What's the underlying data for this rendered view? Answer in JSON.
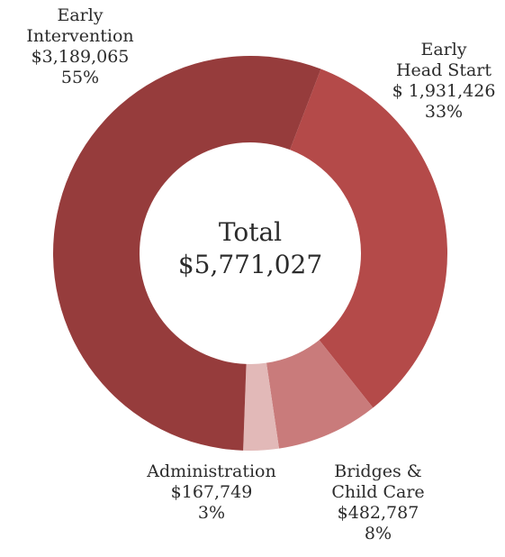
{
  "chart_data": {
    "type": "pie",
    "center": {
      "title": "Total",
      "value": "$5,771,027"
    },
    "slices": [
      {
        "label_lines": [
          "Early",
          "Intervention"
        ],
        "amount_text": "$3,189,065",
        "percent_text": "55%",
        "value": 3189065,
        "color": "#963c3c"
      },
      {
        "label_lines": [
          "Early",
          "Head Start"
        ],
        "amount_text": "$ 1,931,426",
        "percent_text": "33%",
        "value": 1931426,
        "color": "#b44a49"
      },
      {
        "label_lines": [
          "Bridges &",
          "Child Care"
        ],
        "amount_text": "$482,787",
        "percent_text": "8%",
        "value": 482787,
        "color": "#c97b7b"
      },
      {
        "label_lines": [
          "Administration"
        ],
        "amount_text": "$167,749",
        "percent_text": "3%",
        "value": 167749,
        "color": "#e2b9b8"
      }
    ]
  }
}
